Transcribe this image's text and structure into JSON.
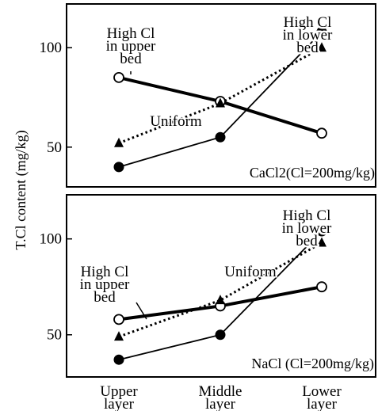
{
  "ylabel": "T.Cl content (mg/kg)",
  "x_categories": [
    "Upper\nlayer",
    "Middle\nlayer",
    "Lower\nlayer"
  ],
  "chart_data": [
    {
      "type": "line",
      "panel": "top",
      "note": "CaCl2(Cl=200mg/kg)",
      "categories": [
        "Upper layer",
        "Middle layer",
        "Lower layer"
      ],
      "ylim": [
        30,
        122
      ],
      "yticks": [
        50,
        100
      ],
      "series": [
        {
          "name": "High Cl in upper bed",
          "values": [
            85,
            73,
            57
          ],
          "marker": "open-circle",
          "line": "thick"
        },
        {
          "name": "Uniform",
          "values": [
            52,
            72,
            100
          ],
          "marker": "triangle",
          "line": "dotted"
        },
        {
          "name": "High Cl in lower bed",
          "values": [
            40,
            55,
            108
          ],
          "marker": "filled-circle",
          "line": "thin"
        }
      ],
      "annotations": [
        {
          "text": "High Cl\nin upper\nbed",
          "series": "High Cl in upper bed"
        },
        {
          "text": "Uniform",
          "series": "Uniform"
        },
        {
          "text": "High Cl\nin lower\nbed",
          "series": "High Cl in lower bed"
        }
      ]
    },
    {
      "type": "line",
      "panel": "bottom",
      "note": "NaCl  (Cl=200mg/kg)",
      "categories": [
        "Upper layer",
        "Middle layer",
        "Lower layer"
      ],
      "ylim": [
        28,
        123
      ],
      "yticks": [
        50,
        100
      ],
      "series": [
        {
          "name": "High Cl in upper bed",
          "values": [
            58,
            65,
            75
          ],
          "marker": "open-circle",
          "line": "thick"
        },
        {
          "name": "Uniform",
          "values": [
            49,
            68,
            98
          ],
          "marker": "triangle",
          "line": "dotted"
        },
        {
          "name": "High Cl in lower bed",
          "values": [
            37,
            50,
            104
          ],
          "marker": "filled-circle",
          "line": "thin"
        }
      ],
      "annotations": [
        {
          "text": "High Cl\nin upper\nbed",
          "series": "High Cl in upper bed"
        },
        {
          "text": "Uniform",
          "series": "Uniform"
        },
        {
          "text": "High Cl\nin lower\nbed",
          "series": "High Cl in lower bed"
        }
      ]
    }
  ]
}
